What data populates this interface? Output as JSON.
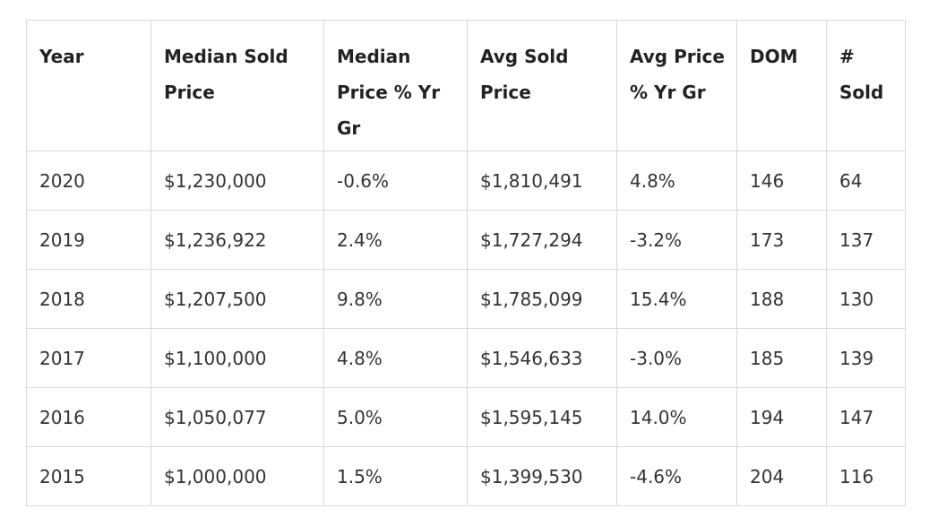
{
  "table": {
    "header": [
      "Year",
      "Median Sold Price",
      "Median Price % Yr Gr",
      "Avg Sold Price",
      "Avg Price % Yr Gr",
      "DOM",
      "# Sold"
    ],
    "rows": [
      [
        "2020",
        "$1,230,000",
        "-0.6%",
        "$1,810,491",
        "4.8%",
        "146",
        "64"
      ],
      [
        "2019",
        "$1,236,922",
        "2.4%",
        "$1,727,294",
        "-3.2%",
        "173",
        "137"
      ],
      [
        "2018",
        "$1,207,500",
        "9.8%",
        "$1,785,099",
        "15.4%",
        "188",
        "130"
      ],
      [
        "2017",
        "$1,100,000",
        "4.8%",
        "$1,546,633",
        "-3.0%",
        "185",
        "139"
      ],
      [
        "2016",
        "$1,050,077",
        "5.0%",
        "$1,595,145",
        "14.0%",
        "194",
        "147"
      ],
      [
        "2015",
        "$1,000,000",
        "1.5%",
        "$1,399,530",
        "-4.6%",
        "204",
        "116"
      ]
    ]
  }
}
